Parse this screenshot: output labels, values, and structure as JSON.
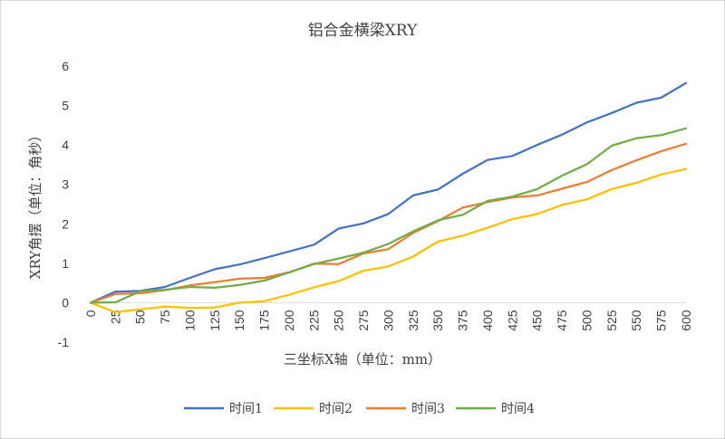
{
  "chart_data": {
    "type": "line",
    "title": "铝合金横梁XRY",
    "xlabel": "三坐标X轴（单位：mm）",
    "ylabel": "XRY角摆（单位：角秒）",
    "ylim": [
      -1,
      6
    ],
    "yticks": [
      "-1",
      "0",
      "1",
      "2",
      "3",
      "4",
      "5",
      "6"
    ],
    "grid": false,
    "legend_position": "bottom",
    "x": [
      "0",
      "25",
      "50",
      "75",
      "100",
      "125",
      "150",
      "175",
      "200",
      "225",
      "250",
      "275",
      "300",
      "325",
      "350",
      "375",
      "400",
      "425",
      "450",
      "475",
      "500",
      "525",
      "550",
      "575",
      "600"
    ],
    "series": [
      {
        "name": "时间1",
        "color": "#4472C4",
        "values": [
          0,
          0.28,
          0.3,
          0.4,
          0.63,
          0.85,
          0.97,
          1.13,
          1.3,
          1.47,
          1.88,
          2.01,
          2.25,
          2.72,
          2.87,
          3.27,
          3.62,
          3.72,
          4.0,
          4.26,
          4.57,
          4.81,
          5.07,
          5.2,
          5.57
        ]
      },
      {
        "name": "时间2",
        "color": "#FFC000",
        "values": [
          0,
          -0.24,
          -0.17,
          -0.1,
          -0.13,
          -0.12,
          0.0,
          0.04,
          0.2,
          0.39,
          0.55,
          0.81,
          0.92,
          1.17,
          1.55,
          1.7,
          1.9,
          2.12,
          2.25,
          2.48,
          2.62,
          2.88,
          3.04,
          3.25,
          3.39
        ]
      },
      {
        "name": "时间3",
        "color": "#ED7D31",
        "values": [
          0,
          0.22,
          0.24,
          0.32,
          0.44,
          0.52,
          0.61,
          0.63,
          0.77,
          0.99,
          0.98,
          1.25,
          1.36,
          1.77,
          2.07,
          2.41,
          2.55,
          2.67,
          2.72,
          2.89,
          3.06,
          3.36,
          3.61,
          3.84,
          4.03
        ]
      },
      {
        "name": "时间4",
        "color": "#70AD47",
        "values": [
          0,
          0.01,
          0.29,
          0.33,
          0.4,
          0.38,
          0.45,
          0.56,
          0.77,
          0.98,
          1.12,
          1.27,
          1.49,
          1.81,
          2.09,
          2.23,
          2.58,
          2.69,
          2.88,
          3.22,
          3.51,
          3.98,
          4.17,
          4.25,
          4.42
        ]
      }
    ]
  }
}
